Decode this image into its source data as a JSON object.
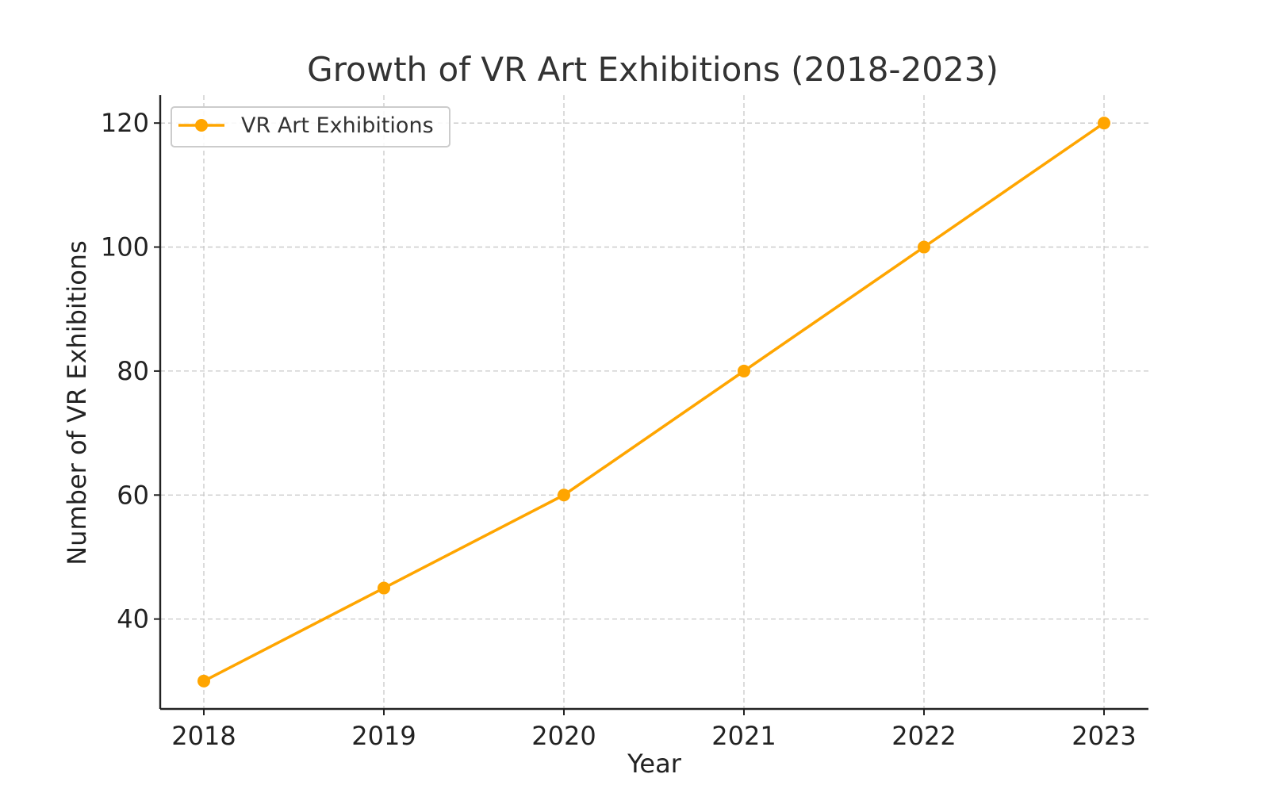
{
  "chart_data": {
    "type": "line",
    "title": "Growth of VR Art Exhibitions (2018-2023)",
    "xlabel": "Year",
    "ylabel": "Number of VR Exhibitions",
    "categories": [
      "2018",
      "2019",
      "2020",
      "2021",
      "2022",
      "2023"
    ],
    "series": [
      {
        "name": "VR Art Exhibitions",
        "values": [
          30,
          45,
          60,
          80,
          100,
          120
        ],
        "color": "#FFA500",
        "marker": "circle"
      }
    ],
    "yticks": [
      40,
      60,
      80,
      100,
      120
    ],
    "ylim": [
      25.5,
      124.5
    ],
    "grid": true,
    "grid_style": "dashed",
    "legend_position": "top-left"
  }
}
